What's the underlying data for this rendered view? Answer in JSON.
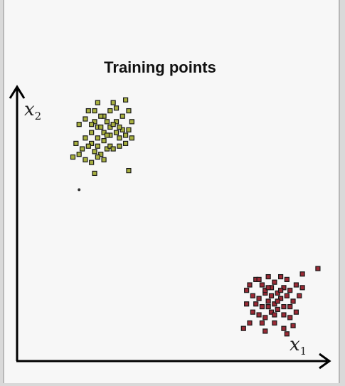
{
  "chart_data": {
    "type": "scatter",
    "title": "Training points",
    "xlabel": {
      "main": "x",
      "sub": "1"
    },
    "ylabel": {
      "main": "x",
      "sub": "2"
    },
    "grid": false,
    "axes": {
      "xlim": [
        0,
        100
      ],
      "ylim": [
        0,
        100
      ],
      "ticks": false
    },
    "series": [
      {
        "color": "#a8b040",
        "marker": "square",
        "points": [
          [
            23,
            92
          ],
          [
            26,
            95
          ],
          [
            31,
            95
          ],
          [
            35,
            96
          ],
          [
            20,
            87
          ],
          [
            22,
            89
          ],
          [
            25,
            88
          ],
          [
            28,
            90
          ],
          [
            30,
            92
          ],
          [
            32,
            88
          ],
          [
            34,
            90
          ],
          [
            36,
            92
          ],
          [
            24,
            84
          ],
          [
            26,
            86
          ],
          [
            28,
            84
          ],
          [
            30,
            86
          ],
          [
            32,
            84
          ],
          [
            34,
            85
          ],
          [
            22,
            82
          ],
          [
            24,
            80
          ],
          [
            26,
            82
          ],
          [
            28,
            81
          ],
          [
            30,
            83
          ],
          [
            33,
            82
          ],
          [
            35,
            83
          ],
          [
            37,
            82
          ],
          [
            31,
            87
          ],
          [
            29,
            88
          ],
          [
            27,
            90
          ],
          [
            25,
            92
          ],
          [
            19,
            80
          ],
          [
            21,
            78
          ],
          [
            23,
            79
          ],
          [
            25,
            77
          ],
          [
            27,
            76
          ],
          [
            29,
            78
          ],
          [
            18,
            75
          ],
          [
            20,
            76
          ],
          [
            22,
            74
          ],
          [
            24,
            73
          ],
          [
            26,
            75
          ],
          [
            28,
            74
          ],
          [
            30,
            79
          ],
          [
            33,
            79
          ],
          [
            36,
            85
          ],
          [
            37,
            88
          ],
          [
            35,
            80
          ],
          [
            31,
            78
          ],
          [
            32,
            93
          ],
          [
            27,
            86
          ],
          [
            29,
            83
          ],
          [
            26,
            79
          ],
          [
            24,
            87
          ],
          [
            33,
            86
          ],
          [
            36,
            70
          ],
          [
            25,
            69
          ]
        ]
      },
      {
        "color": "#9a2a35",
        "marker": "square",
        "points": [
          [
            75,
            28
          ],
          [
            77,
            30
          ],
          [
            79,
            28
          ],
          [
            81,
            31
          ],
          [
            83,
            29
          ],
          [
            85,
            31
          ],
          [
            87,
            30
          ],
          [
            74,
            26
          ],
          [
            76,
            24
          ],
          [
            78,
            23
          ],
          [
            80,
            25
          ],
          [
            82,
            27
          ],
          [
            84,
            25
          ],
          [
            86,
            27
          ],
          [
            88,
            26
          ],
          [
            90,
            28
          ],
          [
            92,
            27
          ],
          [
            77,
            21
          ],
          [
            79,
            20
          ],
          [
            81,
            22
          ],
          [
            83,
            21
          ],
          [
            85,
            23
          ],
          [
            87,
            24
          ],
          [
            89,
            22
          ],
          [
            91,
            24
          ],
          [
            76,
            18
          ],
          [
            78,
            17
          ],
          [
            80,
            16
          ],
          [
            82,
            18
          ],
          [
            84,
            19
          ],
          [
            86,
            17
          ],
          [
            88,
            16
          ],
          [
            90,
            18
          ],
          [
            75,
            14
          ],
          [
            79,
            14
          ],
          [
            83,
            14
          ],
          [
            86,
            12
          ],
          [
            89,
            13
          ],
          [
            80,
            26
          ],
          [
            82,
            24
          ],
          [
            84,
            22
          ],
          [
            86,
            20
          ],
          [
            81,
            20
          ],
          [
            83,
            17
          ],
          [
            85,
            26
          ],
          [
            88,
            20
          ],
          [
            73,
            12
          ],
          [
            80,
            11
          ],
          [
            87,
            10
          ],
          [
            97,
            34
          ],
          [
            92,
            32
          ],
          [
            74,
            21
          ],
          [
            78,
            30
          ],
          [
            81,
            27
          ]
        ]
      },
      {
        "color": "#333333",
        "marker": "dot",
        "points": [
          [
            20,
            63
          ]
        ]
      }
    ]
  }
}
